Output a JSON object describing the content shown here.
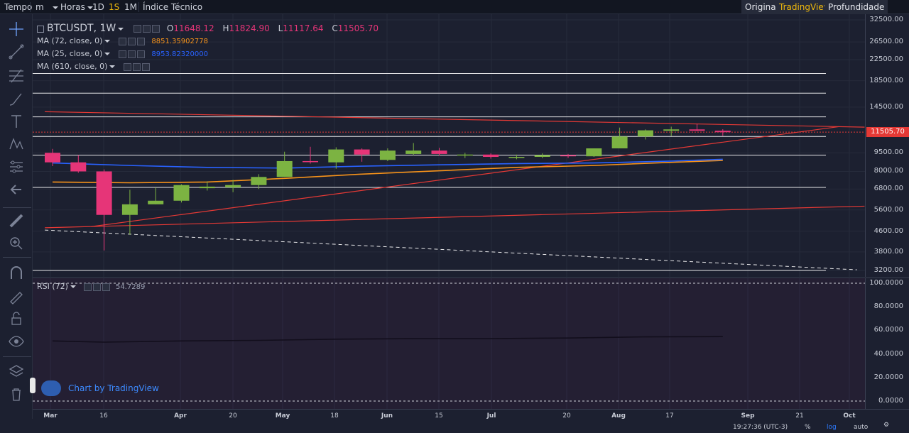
{
  "toolbar": {
    "tempo": "Tempo",
    "interval_m": "m",
    "horas": "Horas",
    "d1": "1D",
    "s1": "1S",
    "m1": "1M",
    "indice": "Índice Técnico",
    "selected": "1S",
    "views": [
      "Original",
      "TradingView",
      "Profundidade"
    ],
    "active_view": "TradingView"
  },
  "legend": {
    "symbol": "BTCUSDT, 1W",
    "ohlc": {
      "o_label": "O",
      "o": "11648.12",
      "h_label": "H",
      "h": "11824.90",
      "l_label": "L",
      "l": "11117.64",
      "c_label": "C",
      "c": "11505.70"
    },
    "ma72": {
      "label": "MA (72, close, 0)",
      "value": "8851.35902778",
      "color": "#f7931a"
    },
    "ma25": {
      "label": "MA (25, close, 0)",
      "value": "8953.82320000",
      "color": "#2962ff"
    },
    "ma610": {
      "label": "MA (610, close, 0)"
    },
    "rsi": {
      "label": "RSI (72)",
      "value": "54.7289"
    }
  },
  "price_axis": {
    "labels": [
      "32500.00",
      "26500.00",
      "22500.00",
      "18500.00",
      "14500.00",
      "9500.00",
      "8000.00",
      "6800.00",
      "5600.00",
      "4600.00",
      "3800.00",
      "3200.00"
    ],
    "current": "11505.70"
  },
  "rsi_axis": {
    "labels": [
      "100.0000",
      "80.0000",
      "60.0000",
      "40.0000",
      "20.0000",
      "0.0000"
    ]
  },
  "time_axis": {
    "labels": [
      {
        "text": "Mar",
        "bold": true
      },
      {
        "text": "16",
        "bold": false
      },
      {
        "text": "Apr",
        "bold": true
      },
      {
        "text": "20",
        "bold": false
      },
      {
        "text": "May",
        "bold": true
      },
      {
        "text": "18",
        "bold": false
      },
      {
        "text": "Jun",
        "bold": true
      },
      {
        "text": "15",
        "bold": false
      },
      {
        "text": "Jul",
        "bold": true
      },
      {
        "text": "20",
        "bold": false
      },
      {
        "text": "Aug",
        "bold": true
      },
      {
        "text": "17",
        "bold": false
      },
      {
        "text": "Sep",
        "bold": true
      },
      {
        "text": "21",
        "bold": false
      },
      {
        "text": "Oct",
        "bold": true
      }
    ],
    "clock": "19:27:36 (UTC-3)",
    "percent": "%",
    "log": "log",
    "auto": "auto"
  },
  "watermark": "Chart by TradingView",
  "colors": {
    "up": "#7cb342",
    "down": "#e63578",
    "bg": "#1c2030",
    "rsi_bg": "#241f33"
  },
  "candles": [
    {
      "o": 9500,
      "h": 9850,
      "l": 8400,
      "c": 8700
    },
    {
      "o": 8700,
      "h": 9300,
      "l": 7900,
      "c": 8000
    },
    {
      "o": 8000,
      "h": 8150,
      "l": 3850,
      "c": 5350
    },
    {
      "o": 5350,
      "h": 6750,
      "l": 4450,
      "c": 5900
    },
    {
      "o": 5900,
      "h": 6900,
      "l": 5900,
      "c": 6100
    },
    {
      "o": 6100,
      "h": 7100,
      "l": 6000,
      "c": 7050
    },
    {
      "o": 6850,
      "h": 7300,
      "l": 6700,
      "c": 6950
    },
    {
      "o": 6900,
      "h": 7400,
      "l": 6600,
      "c": 7050
    },
    {
      "o": 7050,
      "h": 7800,
      "l": 6800,
      "c": 7600
    },
    {
      "o": 7600,
      "h": 9600,
      "l": 7600,
      "c": 8800
    },
    {
      "o": 8800,
      "h": 10050,
      "l": 8600,
      "c": 8750
    },
    {
      "o": 8700,
      "h": 10000,
      "l": 8200,
      "c": 9800
    },
    {
      "o": 9800,
      "h": 9900,
      "l": 8750,
      "c": 9350
    },
    {
      "o": 8900,
      "h": 9900,
      "l": 8800,
      "c": 9700
    },
    {
      "o": 9400,
      "h": 10400,
      "l": 9300,
      "c": 9700
    },
    {
      "o": 9700,
      "h": 9950,
      "l": 9250,
      "c": 9400
    },
    {
      "o": 9300,
      "h": 9500,
      "l": 9050,
      "c": 9350
    },
    {
      "o": 9350,
      "h": 9450,
      "l": 9000,
      "c": 9150
    },
    {
      "o": 9100,
      "h": 9350,
      "l": 8950,
      "c": 9150
    },
    {
      "o": 9150,
      "h": 9450,
      "l": 9050,
      "c": 9300
    },
    {
      "o": 9300,
      "h": 9400,
      "l": 9050,
      "c": 9200
    },
    {
      "o": 9200,
      "h": 9900,
      "l": 9150,
      "c": 9900
    },
    {
      "o": 9900,
      "h": 12000,
      "l": 9900,
      "c": 11050
    },
    {
      "o": 11050,
      "h": 11800,
      "l": 10750,
      "c": 11700
    },
    {
      "o": 11650,
      "h": 12100,
      "l": 11100,
      "c": 11800
    },
    {
      "o": 11800,
      "h": 12400,
      "l": 11600,
      "c": 11650
    },
    {
      "o": 11650,
      "h": 11820,
      "l": 11120,
      "c": 11500
    }
  ],
  "ma25_points": [
    [
      0,
      8650
    ],
    [
      3,
      8450
    ],
    [
      6,
      8300
    ],
    [
      9,
      8250
    ],
    [
      12,
      8400
    ],
    [
      15,
      8500
    ],
    [
      18,
      8600
    ],
    [
      21,
      8650
    ],
    [
      24,
      8800
    ],
    [
      26,
      8950
    ]
  ],
  "ma72_points": [
    [
      0,
      7250
    ],
    [
      3,
      7200
    ],
    [
      6,
      7250
    ],
    [
      9,
      7500
    ],
    [
      12,
      7800
    ],
    [
      15,
      8050
    ],
    [
      18,
      8300
    ],
    [
      21,
      8450
    ],
    [
      24,
      8700
    ],
    [
      26,
      8850
    ]
  ],
  "rsi_points": [
    [
      0,
      51
    ],
    [
      2,
      50
    ],
    [
      5,
      51
    ],
    [
      8,
      51.5
    ],
    [
      11,
      52.5
    ],
    [
      14,
      53
    ],
    [
      17,
      53
    ],
    [
      20,
      53.5
    ],
    [
      23,
      54.5
    ],
    [
      26,
      54.7
    ]
  ],
  "hlines": [
    19800,
    16500,
    13250,
    11050,
    9300,
    6900,
    3200
  ],
  "red_lines": [
    [
      [
        -0.3,
        13900
      ],
      [
        31.5,
        12050
      ]
    ],
    [
      [
        -0.3,
        4750
      ],
      [
        31.5,
        5800
      ]
    ],
    [
      [
        1.5,
        4800
      ],
      [
        30.5,
        12100
      ]
    ]
  ],
  "dash_line": [
    [
      -0.3,
      4650
    ],
    [
      31.2,
      3220
    ]
  ]
}
